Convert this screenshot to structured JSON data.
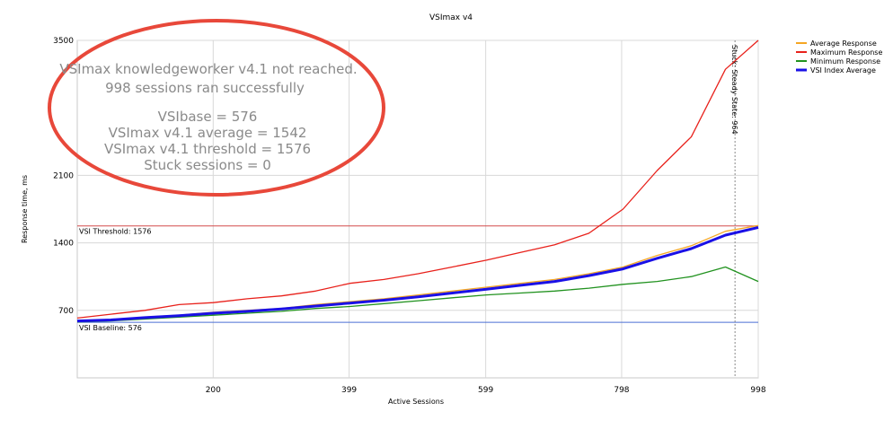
{
  "colors": {
    "average": "#f5a623",
    "maximum": "#e8211b",
    "minimum": "#21921f",
    "vsi_index": "#1a10e6",
    "threshold": "#d44a4a",
    "baseline": "#4a6fd4",
    "ellipse": "#e8483a"
  },
  "callout": {
    "line1": "VSImax knowledgeworker v4.1 not reached.",
    "line2": "998 sessions ran successfully",
    "line3": "VSIbase = 576",
    "line4": "VSImax v4.1 average = 1542",
    "line5": "VSImax v4.1 threshold = 1576",
    "line6": "Stuck sessions = 0"
  },
  "chart_data": {
    "type": "line",
    "title": "VSImax v4",
    "xlabel": "Active Sessions",
    "ylabel": "Response time, ms",
    "xlim": [
      1,
      998
    ],
    "ylim": [
      0,
      3500
    ],
    "xticks": [
      200,
      399,
      599,
      798,
      998
    ],
    "xtick_labels": [
      "200",
      "399",
      "599",
      "798",
      "998"
    ],
    "yticks": [
      700,
      1400,
      2100,
      3500
    ],
    "ytick_labels": [
      "700",
      "1400",
      "2100",
      "3500"
    ],
    "grid": true,
    "legend_position": "top-right",
    "threshold": {
      "label": "VSI Threshold: 1576",
      "value": 1576
    },
    "baseline": {
      "label": "VSI Baseline: 576",
      "value": 576
    },
    "marker": {
      "label": "Stuck: Steady State: 964",
      "x": 964
    },
    "series": [
      {
        "name": "Average Response",
        "color_key": "average",
        "x": [
          1,
          50,
          100,
          150,
          200,
          250,
          300,
          350,
          400,
          450,
          500,
          550,
          600,
          650,
          700,
          750,
          800,
          850,
          900,
          950,
          998
        ],
        "values": [
          590,
          600,
          630,
          650,
          680,
          700,
          720,
          760,
          790,
          820,
          860,
          900,
          940,
          980,
          1020,
          1080,
          1150,
          1270,
          1370,
          1520,
          1580
        ]
      },
      {
        "name": "Maximum Response",
        "color_key": "maximum",
        "x": [
          1,
          50,
          100,
          150,
          200,
          250,
          300,
          350,
          400,
          450,
          500,
          550,
          600,
          650,
          700,
          750,
          800,
          850,
          900,
          950,
          998
        ],
        "values": [
          620,
          660,
          700,
          760,
          780,
          820,
          850,
          900,
          980,
          1020,
          1080,
          1150,
          1220,
          1300,
          1380,
          1500,
          1750,
          2150,
          2500,
          3200,
          3500
        ]
      },
      {
        "name": "Minimum Response",
        "color_key": "minimum",
        "x": [
          1,
          50,
          100,
          150,
          200,
          250,
          300,
          350,
          400,
          450,
          500,
          550,
          600,
          650,
          700,
          750,
          800,
          850,
          900,
          950,
          998
        ],
        "values": [
          580,
          590,
          610,
          630,
          650,
          670,
          690,
          720,
          740,
          770,
          800,
          830,
          860,
          880,
          900,
          930,
          970,
          1000,
          1050,
          1150,
          1000
        ]
      },
      {
        "name": "VSI Index Average",
        "color_key": "vsi_index",
        "x": [
          1,
          50,
          100,
          150,
          200,
          250,
          300,
          350,
          400,
          450,
          500,
          550,
          600,
          650,
          700,
          750,
          800,
          850,
          900,
          950,
          998
        ],
        "values": [
          590,
          600,
          625,
          645,
          670,
          690,
          715,
          745,
          775,
          805,
          840,
          880,
          920,
          960,
          1000,
          1060,
          1130,
          1240,
          1340,
          1480,
          1560
        ]
      }
    ]
  }
}
